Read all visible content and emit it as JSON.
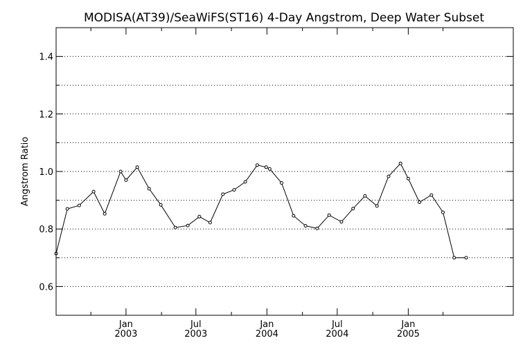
{
  "chart_data": {
    "type": "line",
    "title": "MODISA(AT39)/SeaWiFS(ST16) 4-Day Angstrom, Deep Water Subset",
    "xlabel": "",
    "ylabel": "Angstrom Ratio",
    "xlim": [
      "2002-07-04",
      "2005-09-30"
    ],
    "ylim": [
      0.5,
      1.5
    ],
    "grid": true,
    "y_ticks": [
      "0.6",
      "0.8",
      "1.0",
      "1.2",
      "1.4"
    ],
    "x_ticks": [
      {
        "date": "2003-01-01",
        "month": "Jan",
        "year": "2003"
      },
      {
        "date": "2003-07-01",
        "month": "Jul",
        "year": "2003"
      },
      {
        "date": "2004-01-01",
        "month": "Jan",
        "year": "2004"
      },
      {
        "date": "2004-07-01",
        "month": "Jul",
        "year": "2004"
      },
      {
        "date": "2005-01-01",
        "month": "Jan",
        "year": "2005"
      }
    ],
    "series": [
      {
        "x": [
          "2002-07-04",
          "2002-08-02",
          "2002-09-02",
          "2002-10-09",
          "2002-11-07",
          "2002-12-18",
          "2003-01-01",
          "2003-01-30",
          "2003-03-02",
          "2003-04-01",
          "2003-05-09",
          "2003-06-10",
          "2003-07-10",
          "2003-08-07",
          "2003-09-09",
          "2003-10-08",
          "2003-11-06",
          "2003-12-07",
          "2003-12-30",
          "2004-01-08",
          "2004-02-08",
          "2004-03-10",
          "2004-04-10",
          "2004-05-10",
          "2004-06-10",
          "2004-07-12",
          "2004-08-11",
          "2004-09-11",
          "2004-10-12",
          "2004-11-11",
          "2004-12-12",
          "2005-01-01",
          "2005-01-30",
          "2005-03-02",
          "2005-04-01",
          "2005-04-30",
          "2005-05-31"
        ],
        "y": [
          0.715,
          0.87,
          0.882,
          0.93,
          0.853,
          1.0,
          0.97,
          1.015,
          0.94,
          0.884,
          0.805,
          0.812,
          0.843,
          0.822,
          0.921,
          0.936,
          0.964,
          1.022,
          1.015,
          1.009,
          0.96,
          0.846,
          0.811,
          0.802,
          0.848,
          0.825,
          0.871,
          0.915,
          0.88,
          0.983,
          1.028,
          0.975,
          0.893,
          0.918,
          0.858,
          0.7,
          0.7
        ]
      }
    ]
  }
}
